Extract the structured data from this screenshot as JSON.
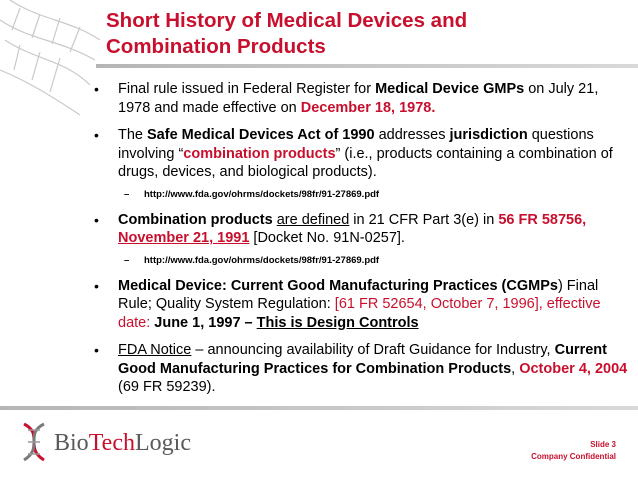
{
  "title": {
    "line1": "Short History of Medical Devices and",
    "line2": "Combination Products"
  },
  "bullets": {
    "b1": {
      "t1": "Final rule issued in Federal Register for ",
      "t2": "Medical Device GMPs",
      "t3": " on July 21, 1978 and made effective on ",
      "t4": "December 18, 1978."
    },
    "b2": {
      "t1": "The ",
      "t2": "Safe Medical Devices Act of 1990",
      "t3": " addresses ",
      "t4": "jurisdiction",
      "t5": " questions involving “",
      "t6": "combination products",
      "t7": "” (i.e., products containing a combination of drugs, devices, and biological products)."
    },
    "sub1": "http://www.fda.gov/ohrms/dockets/98fr/91-27869.pdf",
    "b3": {
      "t1": "Combination products",
      "t2": " ",
      "t3": "are defined",
      "t4": " in 21 CFR Part 3(e) in ",
      "t5": "56 FR 58756, ",
      "t6": "November 21, 1991",
      "t7": " [Docket No. 91N-0257]."
    },
    "sub2": "http://www.fda.gov/ohrms/dockets/98fr/91-27869.pdf",
    "b4": {
      "t1": "Medical Device: Current Good Manufacturing Practices (CGMPs",
      "t2": ") Final Rule; Quality System Regulation: ",
      "t3": "[61 FR 52654, October 7, 1996], effective date: ",
      "t4": "June 1, 1997",
      "t5": " – ",
      "t6": "This is Design Controls"
    },
    "b5": {
      "t1": "FDA Notice",
      "t2": " – announcing availability of Draft Guidance for Industry, ",
      "t3": "Current Good Manufacturing Practices for Combination Products",
      "t4": ", ",
      "t5": "October 4, 2004",
      "t6": " (69 FR 59239)."
    }
  },
  "footer": {
    "logo_bio": "Bio",
    "logo_tech": "Tech",
    "logo_logic": "Logic",
    "slide": "Slide 3",
    "confidential": "Company Confidential"
  },
  "colors": {
    "accent": "#c8102e",
    "rule": "#c0c0c0"
  }
}
